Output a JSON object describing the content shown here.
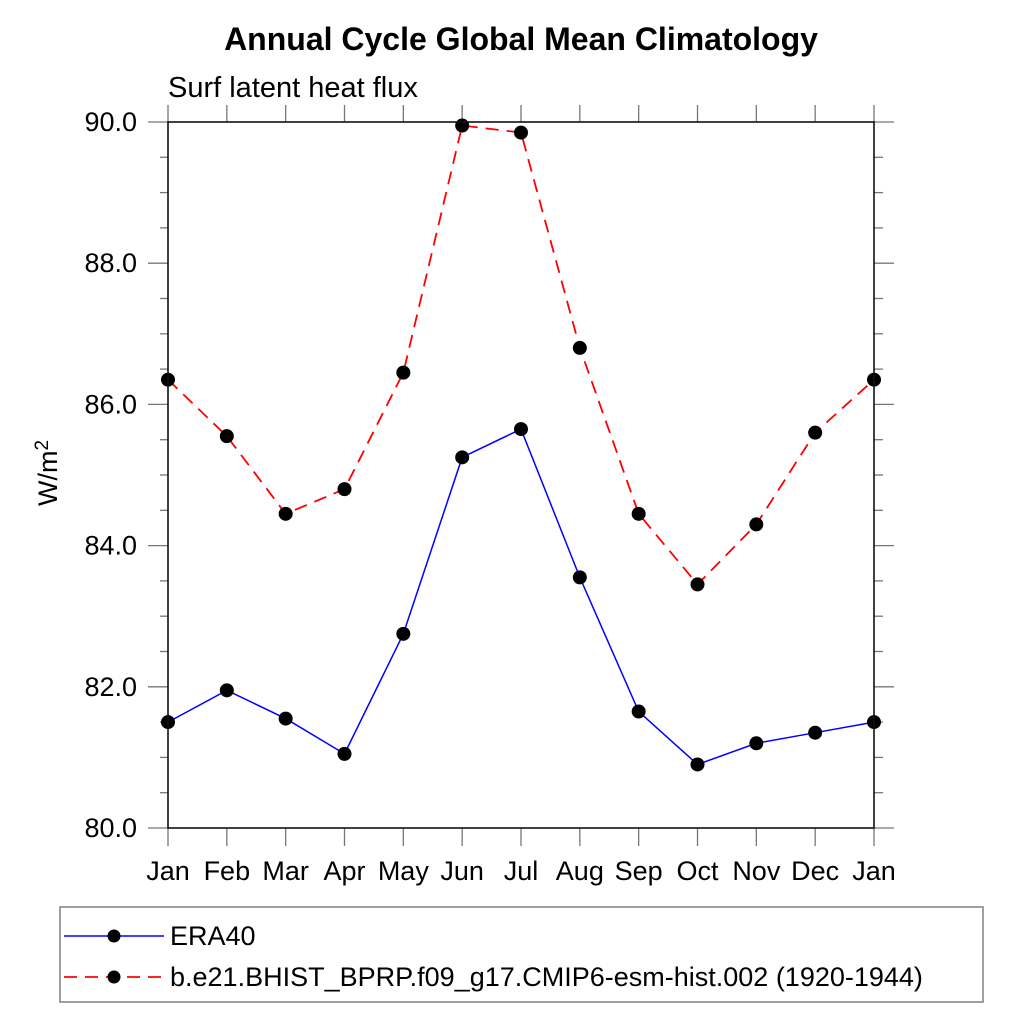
{
  "page": {
    "background": "#ffffff"
  },
  "chart_data": {
    "type": "line",
    "title": "Annual Cycle Global Mean Climatology",
    "subtitle": "Surf latent heat flux",
    "xlabel": "",
    "ylabel": "W/m²",
    "ylabel_base": "W/m",
    "ylabel_exp": "2",
    "categories": [
      "Jan",
      "Feb",
      "Mar",
      "Apr",
      "May",
      "Jun",
      "Jul",
      "Aug",
      "Sep",
      "Oct",
      "Nov",
      "Dec",
      "Jan"
    ],
    "ylim": [
      80.0,
      90.0
    ],
    "yticks_major": [
      80.0,
      82.0,
      84.0,
      86.0,
      88.0,
      90.0
    ],
    "ytick_labels": [
      "80.0",
      "82.0",
      "84.0",
      "86.0",
      "88.0",
      "90.0"
    ],
    "ytick_minor_step": 0.5,
    "grid": false,
    "legend_position": "bottom-left-box",
    "series": [
      {
        "name": "ERA40",
        "color": "#0000ff",
        "style": "solid",
        "marker": "circle",
        "marker_color": "#000000",
        "values": [
          81.5,
          81.95,
          81.55,
          81.05,
          82.75,
          85.25,
          85.65,
          83.55,
          81.65,
          80.9,
          81.2,
          81.35,
          81.5
        ]
      },
      {
        "name": "b.e21.BHIST_BPRP.f09_g17.CMIP6-esm-hist.002 (1920-1944)",
        "color": "#ff0000",
        "style": "dashed",
        "marker": "circle",
        "marker_color": "#000000",
        "values": [
          86.35,
          85.55,
          84.45,
          84.8,
          86.45,
          89.95,
          89.85,
          86.8,
          84.45,
          83.45,
          84.3,
          85.6,
          86.35
        ]
      }
    ]
  },
  "colors": {
    "axis_frame": "#111111",
    "tick": "#777777",
    "marker": "#000000",
    "legend_border": "#808080",
    "era40_line": "#0000ff",
    "model_line": "#ff0000"
  }
}
